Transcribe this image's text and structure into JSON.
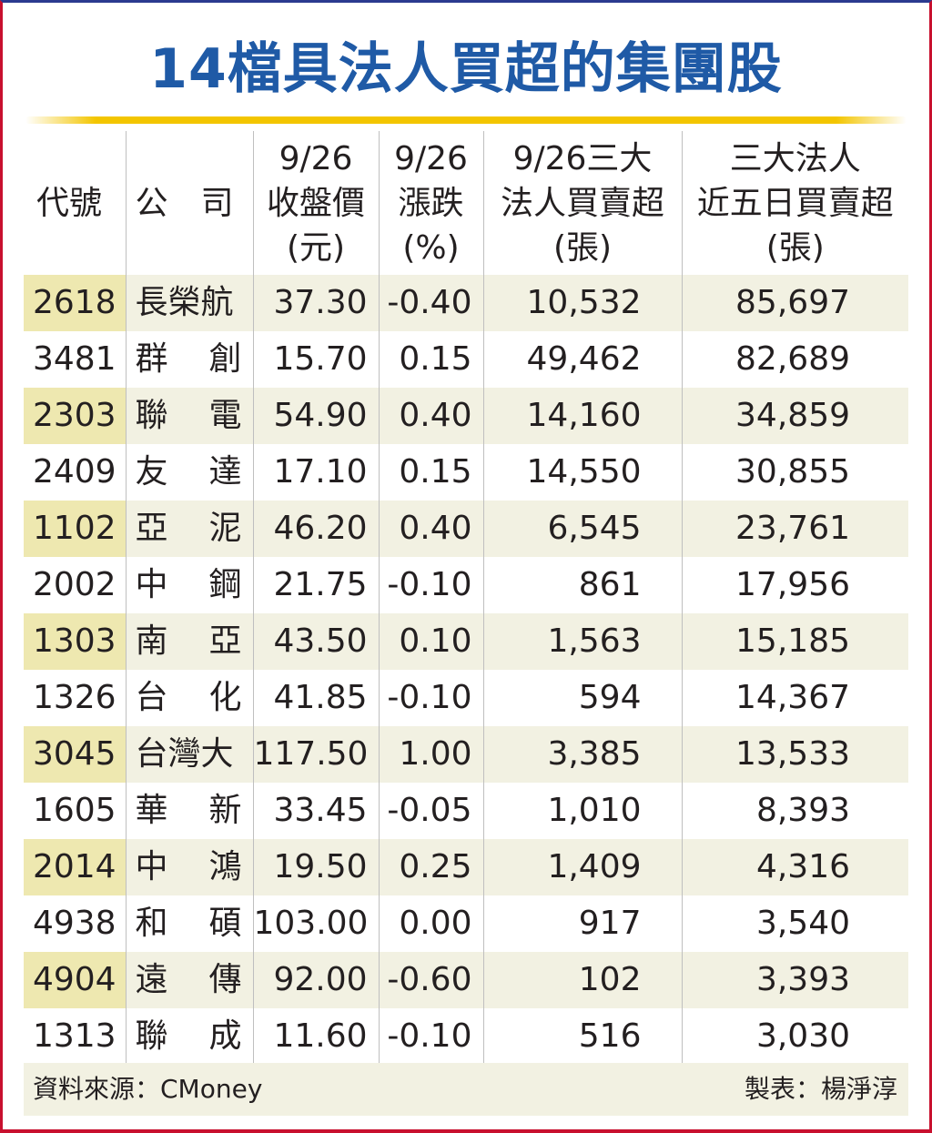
{
  "title": "14檔具法人買超的集團股",
  "headers": {
    "code": "代號",
    "company": [
      "公",
      "司"
    ],
    "close": [
      "9/26",
      "收盤價",
      "(元)"
    ],
    "change": [
      "9/26",
      "漲跌",
      "(%)"
    ],
    "inst": [
      "9/26三大",
      "法人買賣超",
      "(張)"
    ],
    "five": [
      "三大法人",
      "近五日買賣超",
      "(張)"
    ]
  },
  "rows": [
    {
      "code": "2618",
      "company": [
        "長榮航"
      ],
      "close": "37.30",
      "change": "-0.40",
      "inst": "10,532",
      "five": "85,697"
    },
    {
      "code": "3481",
      "company": [
        "群",
        "創"
      ],
      "close": "15.70",
      "change": "0.15",
      "inst": "49,462",
      "five": "82,689"
    },
    {
      "code": "2303",
      "company": [
        "聯",
        "電"
      ],
      "close": "54.90",
      "change": "0.40",
      "inst": "14,160",
      "five": "34,859"
    },
    {
      "code": "2409",
      "company": [
        "友",
        "達"
      ],
      "close": "17.10",
      "change": "0.15",
      "inst": "14,550",
      "five": "30,855"
    },
    {
      "code": "1102",
      "company": [
        "亞",
        "泥"
      ],
      "close": "46.20",
      "change": "0.40",
      "inst": "6,545",
      "five": "23,761"
    },
    {
      "code": "2002",
      "company": [
        "中",
        "鋼"
      ],
      "close": "21.75",
      "change": "-0.10",
      "inst": "861",
      "five": "17,956"
    },
    {
      "code": "1303",
      "company": [
        "南",
        "亞"
      ],
      "close": "43.50",
      "change": "0.10",
      "inst": "1,563",
      "five": "15,185"
    },
    {
      "code": "1326",
      "company": [
        "台",
        "化"
      ],
      "close": "41.85",
      "change": "-0.10",
      "inst": "594",
      "five": "14,367"
    },
    {
      "code": "3045",
      "company": [
        "台灣大"
      ],
      "close": "117.50",
      "change": "1.00",
      "inst": "3,385",
      "five": "13,533"
    },
    {
      "code": "1605",
      "company": [
        "華",
        "新"
      ],
      "close": "33.45",
      "change": "-0.05",
      "inst": "1,010",
      "five": "8,393"
    },
    {
      "code": "2014",
      "company": [
        "中",
        "鴻"
      ],
      "close": "19.50",
      "change": "0.25",
      "inst": "1,409",
      "five": "4,316"
    },
    {
      "code": "4938",
      "company": [
        "和",
        "碩"
      ],
      "close": "103.00",
      "change": "0.00",
      "inst": "917",
      "five": "3,540"
    },
    {
      "code": "4904",
      "company": [
        "遠",
        "傳"
      ],
      "close": "92.00",
      "change": "-0.60",
      "inst": "102",
      "five": "3,393"
    },
    {
      "code": "1313",
      "company": [
        "聯",
        "成"
      ],
      "close": "11.60",
      "change": "-0.10",
      "inst": "516",
      "five": "3,030"
    }
  ],
  "footer": {
    "source": "資料來源：CMoney",
    "maker": "製表：楊淨淳"
  }
}
